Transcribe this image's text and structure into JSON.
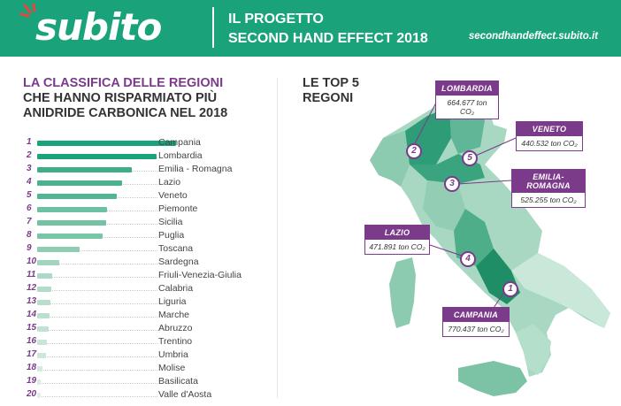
{
  "header": {
    "logo_text": "subito",
    "title_line1": "IL PROGETTO",
    "title_line2": "SECOND HAND EFFECT 2018",
    "url": "secondhandeffect.subito.it"
  },
  "left": {
    "title_accent": "LA CLASSIFICA DELLE REGIONI",
    "title_line2": "CHE HANNO RISPARMIATO PIÙ",
    "title_line3": "ANIDRIDE CARBONICA NEL 2018"
  },
  "right": {
    "title_line1": "LE TOP 5",
    "title_line2": "REGONI"
  },
  "colors": {
    "brand_green": "#1aa37a",
    "accent_purple": "#7b3a8a"
  },
  "chart_data": {
    "type": "bar",
    "orientation": "horizontal",
    "ranks": [
      "1",
      "2",
      "3",
      "4",
      "5",
      "6",
      "7",
      "8",
      "9",
      "10",
      "11",
      "12",
      "13",
      "14",
      "15",
      "16",
      "17",
      "18",
      "19",
      "20"
    ],
    "categories": [
      "Campania",
      "Lombardia",
      "Emilia - Romagna",
      "Lazio",
      "Veneto",
      "Piemonte",
      "Sicilia",
      "Puglia",
      "Toscana",
      "Sardegna",
      "Friuli-Venezia-Giulia",
      "Calabria",
      "Liguria",
      "Marche",
      "Abruzzo",
      "Trentino",
      "Umbria",
      "Molise",
      "Basilicata",
      "Valle d'Aosta"
    ],
    "values": [
      770437,
      664677,
      525255,
      471891,
      440532,
      390000,
      385000,
      365000,
      235000,
      125000,
      85000,
      80000,
      72000,
      68000,
      62000,
      55000,
      48000,
      30000,
      20000,
      8000
    ],
    "xlim": [
      0,
      780000
    ],
    "grid": false,
    "legend": "none"
  },
  "top5": [
    {
      "rank": "1",
      "name": "CAMPANIA",
      "value": "770.437 ton CO₂"
    },
    {
      "rank": "2",
      "name": "LOMBARDIA",
      "value": "664.677 ton CO₂"
    },
    {
      "rank": "3",
      "name": "EMILIA-ROMAGNA",
      "value": "525.255 ton CO₂"
    },
    {
      "rank": "4",
      "name": "LAZIO",
      "value": "471.891 ton CO₂"
    },
    {
      "rank": "5",
      "name": "VENETO",
      "value": "440.532 ton CO₂"
    }
  ]
}
